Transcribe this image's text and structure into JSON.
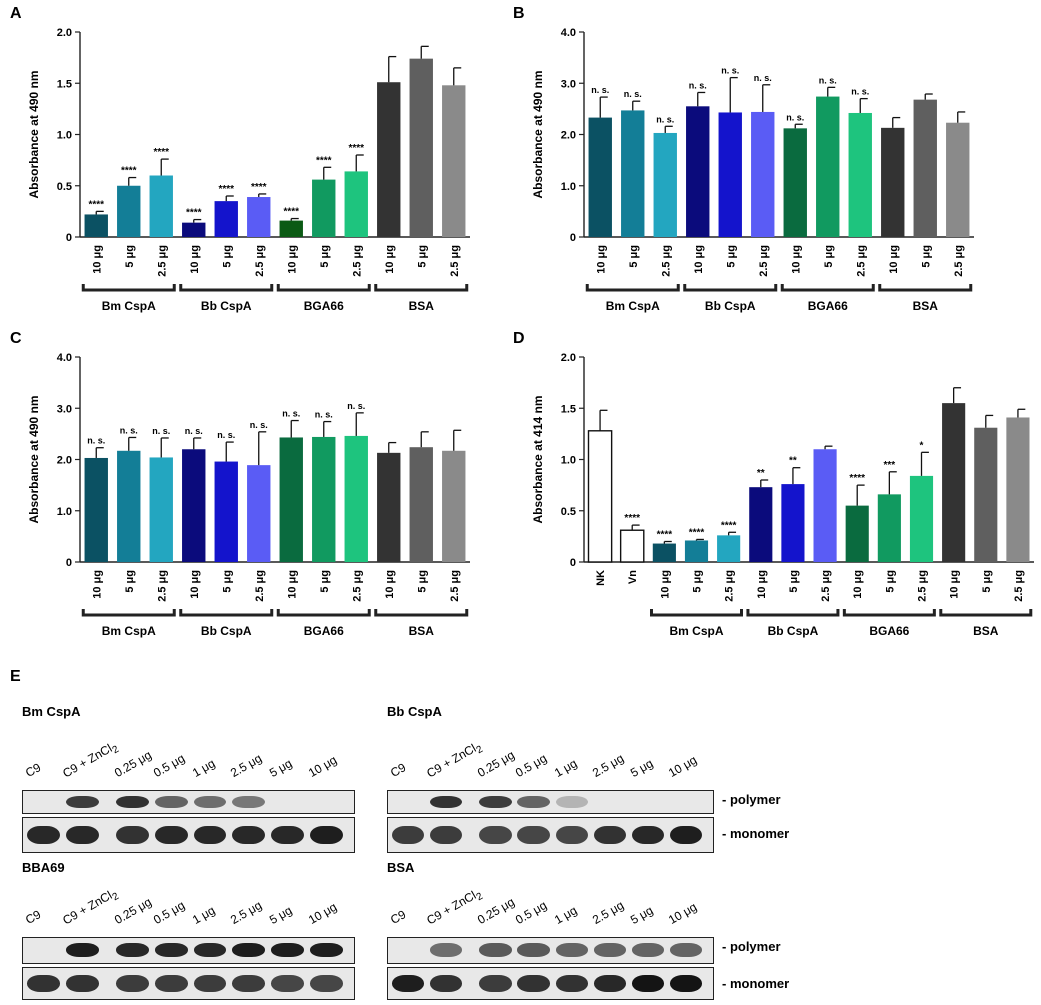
{
  "panels": {
    "A": {
      "letter": "A",
      "ylabel": "Absorbance at 490 nm",
      "ylim": [
        0,
        2.0
      ],
      "yticks": [
        "0",
        "0.5",
        "1.0",
        "1.5",
        "2.0"
      ]
    },
    "B": {
      "letter": "B",
      "ylabel": "Absorbance at 490 nm",
      "ylim": [
        0,
        4.0
      ],
      "yticks": [
        "0",
        "1.0",
        "2.0",
        "3.0",
        "4.0"
      ]
    },
    "C": {
      "letter": "C",
      "ylabel": "Absorbance at 490 nm",
      "ylim": [
        0,
        4.0
      ],
      "yticks": [
        "0",
        "1.0",
        "2.0",
        "3.0",
        "4.0"
      ]
    },
    "D": {
      "letter": "D",
      "ylabel": "Absorbance at 414 nm",
      "ylim": [
        0,
        2.0
      ],
      "yticks": [
        "0",
        "0.5",
        "1.0",
        "1.5",
        "2.0"
      ]
    },
    "E": {
      "letter": "E"
    }
  },
  "group_labels": [
    "Bm CspA",
    "Bb CspA",
    "BGA66",
    "BSA"
  ],
  "dose_labels": [
    "10 μg",
    "5 μg",
    "2.5 μg"
  ],
  "controls_D": [
    "NK",
    "Vn"
  ],
  "colors": {
    "Bm CspA": [
      "#0b5163",
      "#137e97",
      "#23a6c0"
    ],
    "Bb CspA": [
      "#0b0b7c",
      "#1414cc",
      "#5a5cf5"
    ],
    "BGA66": [
      "#0a6b3f",
      "#119a60",
      "#1ec47e"
    ],
    "BGA66_A": [
      "#0b5a14",
      "#119a60",
      "#1ec47e"
    ],
    "BSA": [
      "#333333",
      "#5f5f5f",
      "#8a8a8a"
    ],
    "control": "#ffffff"
  },
  "chart_data": [
    {
      "panel": "A",
      "type": "bar",
      "title": "",
      "ylabel": "Absorbance at 490 nm",
      "ylim": [
        0,
        2.0
      ],
      "categories": [
        "10 μg",
        "5 μg",
        "2.5 μg",
        "10 μg",
        "5 μg",
        "2.5 μg",
        "10 μg",
        "5 μg",
        "2.5 μg",
        "10 μg",
        "5 μg",
        "2.5 μg"
      ],
      "groups": [
        "Bm CspA",
        "Bb CspA",
        "BGA66",
        "BSA"
      ],
      "values": [
        0.22,
        0.5,
        0.6,
        0.14,
        0.35,
        0.39,
        0.16,
        0.56,
        0.64,
        1.51,
        1.74,
        1.48
      ],
      "errors": [
        0.03,
        0.08,
        0.16,
        0.03,
        0.05,
        0.03,
        0.02,
        0.12,
        0.16,
        0.25,
        0.12,
        0.17
      ],
      "annotations": [
        "****",
        "****",
        "****",
        "****",
        "****",
        "****",
        "****",
        "****",
        "****",
        "",
        "",
        ""
      ]
    },
    {
      "panel": "B",
      "type": "bar",
      "title": "",
      "ylabel": "Absorbance at 490 nm",
      "ylim": [
        0,
        4.0
      ],
      "categories": [
        "10 μg",
        "5 μg",
        "2.5 μg",
        "10 μg",
        "5 μg",
        "2.5 μg",
        "10 μg",
        "5 μg",
        "2.5 μg",
        "10 μg",
        "5 μg",
        "2.5 μg"
      ],
      "groups": [
        "Bm CspA",
        "Bb CspA",
        "BGA66",
        "BSA"
      ],
      "values": [
        2.33,
        2.47,
        2.03,
        2.55,
        2.43,
        2.44,
        2.12,
        2.74,
        2.42,
        2.13,
        2.68,
        2.23
      ],
      "errors": [
        0.4,
        0.18,
        0.13,
        0.27,
        0.68,
        0.53,
        0.08,
        0.18,
        0.28,
        0.2,
        0.11,
        0.21
      ],
      "annotations": [
        "n. s.",
        "n. s.",
        "n. s.",
        "n. s.",
        "n. s.",
        "n. s.",
        "n. s.",
        "n. s.",
        "n. s.",
        "",
        "",
        ""
      ]
    },
    {
      "panel": "C",
      "type": "bar",
      "title": "",
      "ylabel": "Absorbance at 490 nm",
      "ylim": [
        0,
        4.0
      ],
      "categories": [
        "10 μg",
        "5 μg",
        "2.5 μg",
        "10 μg",
        "5 μg",
        "2.5 μg",
        "10 μg",
        "5 μg",
        "2.5 μg",
        "10 μg",
        "5 μg",
        "2.5 μg"
      ],
      "groups": [
        "Bm CspA",
        "Bb CspA",
        "BGA66",
        "BSA"
      ],
      "values": [
        2.03,
        2.17,
        2.04,
        2.2,
        1.96,
        1.89,
        2.43,
        2.44,
        2.46,
        2.13,
        2.24,
        2.17
      ],
      "errors": [
        0.2,
        0.26,
        0.38,
        0.22,
        0.38,
        0.65,
        0.33,
        0.3,
        0.45,
        0.2,
        0.3,
        0.4
      ],
      "annotations": [
        "n. s.",
        "n. s.",
        "n. s.",
        "n. s.",
        "n. s.",
        "n. s.",
        "n. s.",
        "n. s.",
        "n. s.",
        "",
        "",
        ""
      ]
    },
    {
      "panel": "D",
      "type": "bar",
      "title": "",
      "ylabel": "Absorbance at 414 nm",
      "ylim": [
        0,
        2.0
      ],
      "categories": [
        "NK",
        "Vn",
        "10 μg",
        "5 μg",
        "2.5 μg",
        "10 μg",
        "5 μg",
        "2.5 μg",
        "10 μg",
        "5 μg",
        "2.5 μg",
        "10 μg",
        "5 μg",
        "2.5 μg"
      ],
      "groups": [
        "",
        "",
        "Bm CspA",
        "Bb CspA",
        "BGA66",
        "BSA"
      ],
      "values": [
        1.28,
        0.31,
        0.18,
        0.21,
        0.26,
        0.73,
        0.76,
        1.1,
        0.55,
        0.66,
        0.84,
        1.55,
        1.31,
        1.41
      ],
      "errors": [
        0.2,
        0.05,
        0.02,
        0.01,
        0.03,
        0.07,
        0.16,
        0.03,
        0.2,
        0.22,
        0.23,
        0.15,
        0.12,
        0.08
      ],
      "annotations": [
        "",
        "****",
        "****",
        "****",
        "****",
        "**",
        "**",
        "",
        "****",
        "***",
        "*",
        "",
        "",
        ""
      ]
    }
  ],
  "blots": {
    "lane_labels": [
      "C9",
      "C9 + ZnCl",
      "0.25 μg",
      "0.5 μg",
      "1 μg",
      "2.5 μg",
      "5 μg",
      "10 μg"
    ],
    "subscript": "2",
    "polymer_label": "polymer",
    "monomer_label": "monomer",
    "titles": [
      "Bm CspA",
      "Bb CspA",
      "BBA69",
      "BSA"
    ],
    "polymer_intensity": [
      [
        0,
        0.8,
        0.85,
        0.6,
        0.55,
        0.5,
        0,
        0
      ],
      [
        0,
        0.85,
        0.8,
        0.6,
        0.2,
        0,
        0,
        0
      ],
      [
        0,
        0.95,
        0.9,
        0.9,
        0.9,
        0.95,
        0.95,
        0.95
      ],
      [
        0,
        0.55,
        0.65,
        0.65,
        0.6,
        0.6,
        0.6,
        0.6
      ]
    ],
    "monomer_intensity": [
      [
        0.9,
        0.9,
        0.85,
        0.9,
        0.9,
        0.9,
        0.9,
        0.95
      ],
      [
        0.8,
        0.8,
        0.75,
        0.75,
        0.75,
        0.85,
        0.9,
        0.95
      ],
      [
        0.85,
        0.85,
        0.8,
        0.8,
        0.8,
        0.8,
        0.75,
        0.75
      ],
      [
        0.95,
        0.85,
        0.8,
        0.85,
        0.85,
        0.9,
        1.0,
        1.0
      ]
    ]
  }
}
